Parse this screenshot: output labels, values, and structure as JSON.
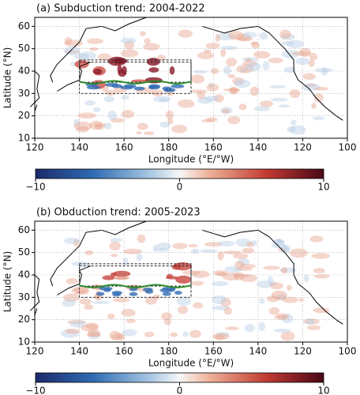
{
  "panels": [
    {
      "title": "(a) Subduction trend: 2004-2022",
      "xlabel": "Longitude (°E/°W)",
      "ylabel": "Latitude (°N)",
      "xlim": [
        120,
        260
      ],
      "ylim": [
        10,
        64
      ],
      "xticks": [
        120,
        140,
        160,
        180,
        {
          "value": 200,
          "label": "160"
        },
        {
          "value": 220,
          "label": "140"
        },
        {
          "value": 240,
          "label": "120"
        },
        {
          "value": 260,
          "label": "100"
        }
      ],
      "yticks": [
        10,
        20,
        30,
        40,
        50,
        60
      ],
      "colorbar": {
        "lim": [
          -10,
          10
        ],
        "ticks": [
          {
            "value": -10,
            "label": "−10"
          },
          0,
          10
        ]
      }
    },
    {
      "title": "(b) Obduction trend: 2005-2023",
      "xlabel": "Longitude (°E/°W)",
      "ylabel": "Latitude (°N)",
      "xlim": [
        120,
        260
      ],
      "ylim": [
        10,
        64
      ],
      "xticks": [
        120,
        140,
        160,
        180,
        {
          "value": 200,
          "label": "160"
        },
        {
          "value": 220,
          "label": "140"
        },
        {
          "value": 240,
          "label": "120"
        },
        {
          "value": 260,
          "label": "100"
        }
      ],
      "yticks": [
        10,
        20,
        30,
        40,
        50,
        60
      ],
      "colorbar": {
        "lim": [
          -10,
          10
        ],
        "ticks": [
          {
            "value": -10,
            "label": "−10"
          },
          0,
          10
        ]
      }
    }
  ]
}
